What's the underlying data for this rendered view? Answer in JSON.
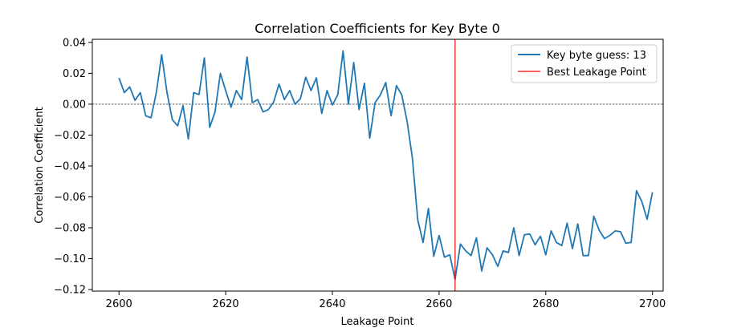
{
  "chart_data": {
    "type": "line",
    "title": "Correlation Coefficients for Key Byte 0",
    "xlabel": "Leakage Point",
    "ylabel": "Correlation Coefficient",
    "xlim": [
      2595,
      2702
    ],
    "ylim": [
      -0.121,
      0.042
    ],
    "xticks": [
      2600,
      2620,
      2640,
      2660,
      2680,
      2700
    ],
    "yticks": [
      0.04,
      0.02,
      0.0,
      -0.02,
      -0.04,
      -0.06,
      -0.08,
      -0.1,
      -0.12
    ],
    "ytick_labels": [
      "0.04",
      "0.02",
      "0.00",
      "−0.02",
      "−0.04",
      "−0.06",
      "−0.08",
      "−0.10",
      "−0.12"
    ],
    "grid": false,
    "legend_position": "top-right",
    "series": [
      {
        "name": "Key byte guess: 13",
        "color": "#1f77b4",
        "x_start": 2600,
        "x_step": 1,
        "values": [
          0.017,
          0.0075,
          0.0112,
          0.0025,
          0.0075,
          -0.0075,
          -0.0088,
          0.0075,
          0.032,
          0.0075,
          -0.01,
          -0.014,
          -0.001,
          -0.0225,
          0.0075,
          0.0062,
          0.03,
          -0.015,
          -0.005,
          0.02,
          0.0088,
          -0.002,
          0.0088,
          0.003,
          0.0305,
          0.001,
          0.003,
          -0.005,
          -0.0035,
          0.0015,
          0.013,
          0.003,
          0.0088,
          0.0,
          0.0035,
          0.0175,
          0.0088,
          0.017,
          -0.006,
          0.0088,
          -0.0005,
          0.006,
          0.0345,
          0.0,
          0.027,
          -0.0035,
          0.0135,
          -0.022,
          0.001,
          0.006,
          0.014,
          -0.0075,
          0.012,
          0.006,
          -0.011,
          -0.035,
          -0.075,
          -0.0895,
          -0.0675,
          -0.0985,
          -0.085,
          -0.099,
          -0.0975,
          -0.1135,
          -0.0905,
          -0.095,
          -0.098,
          -0.0865,
          -0.108,
          -0.093,
          -0.0975,
          -0.105,
          -0.095,
          -0.096,
          -0.08,
          -0.098,
          -0.0845,
          -0.084,
          -0.091,
          -0.0855,
          -0.0975,
          -0.082,
          -0.0895,
          -0.0915,
          -0.077,
          -0.0935,
          -0.0775,
          -0.098,
          -0.098,
          -0.0725,
          -0.0815,
          -0.087,
          -0.085,
          -0.082,
          -0.0825,
          -0.09,
          -0.0895,
          -0.056,
          -0.063,
          -0.0745,
          -0.057
        ]
      }
    ],
    "reference_lines": [
      {
        "name": "Best Leakage Point",
        "orientation": "vertical",
        "x": 2663,
        "color": "#ff0000"
      },
      {
        "orientation": "horizontal",
        "y": 0.0,
        "color": "#000000",
        "style": "dashed"
      }
    ]
  }
}
